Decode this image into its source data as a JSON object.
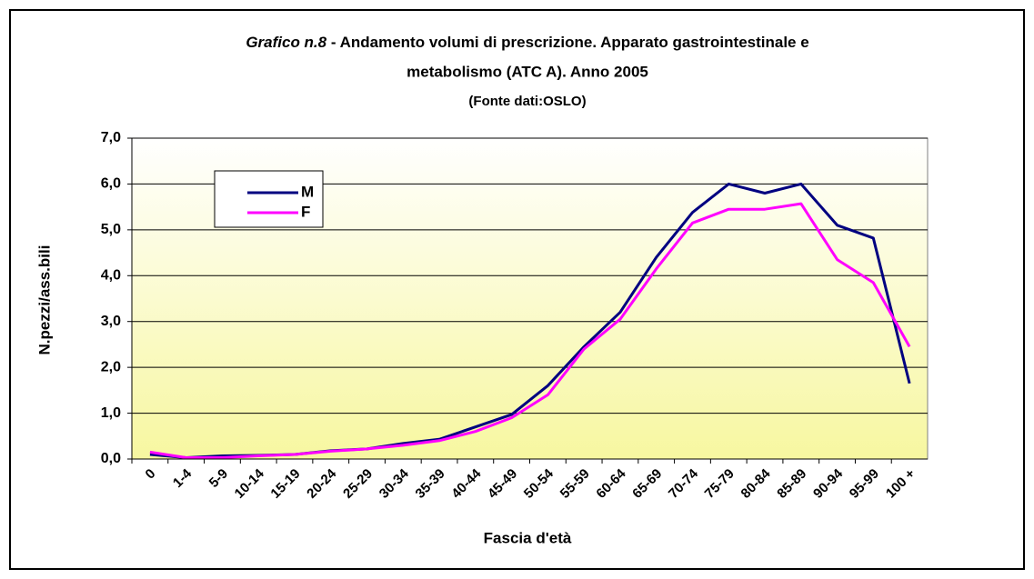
{
  "chart_data": {
    "type": "line",
    "title": [
      "Grafico n.8",
      " - Andamento volumi di prescrizione. Apparato gastrointestinale e",
      "metabolismo (ATC A). Anno 2005"
    ],
    "subtitle": "(Fonte dati:OSLO)",
    "x_label": "Fascia d'età",
    "y_label": "N.pezzi/ass.bili",
    "categories": [
      "0",
      "1-4",
      "5-9",
      "10-14",
      "15-19",
      "20-24",
      "25-29",
      "30-34",
      "35-39",
      "40-44",
      "45-49",
      "50-54",
      "55-59",
      "60-64",
      "65-69",
      "70-74",
      "75-79",
      "80-84",
      "85-89",
      "90-94",
      "95-99",
      "100 +"
    ],
    "series": [
      {
        "name": "M",
        "color": "#000080",
        "values": [
          0.1,
          0.03,
          0.07,
          0.08,
          0.1,
          0.18,
          0.22,
          0.34,
          0.43,
          0.7,
          0.97,
          1.6,
          2.45,
          3.2,
          4.4,
          5.38,
          6.0,
          5.8,
          6.0,
          5.1,
          4.82,
          1.65
        ]
      },
      {
        "name": "F",
        "color": "#ff00ff",
        "values": [
          0.15,
          0.03,
          0.03,
          0.07,
          0.1,
          0.17,
          0.22,
          0.3,
          0.4,
          0.6,
          0.9,
          1.4,
          2.4,
          3.05,
          4.15,
          5.15,
          5.45,
          5.45,
          5.57,
          4.35,
          3.85,
          2.45
        ]
      }
    ],
    "ylim": [
      0,
      7
    ],
    "yticks": [
      {
        "value": 0,
        "label": "0,0"
      },
      {
        "value": 1,
        "label": "1,0"
      },
      {
        "value": 2,
        "label": "2,0"
      },
      {
        "value": 3,
        "label": "3,0"
      },
      {
        "value": 4,
        "label": "4,0"
      },
      {
        "value": 5,
        "label": "5,0"
      },
      {
        "value": 6,
        "label": "6,0"
      },
      {
        "value": 7,
        "label": "7,0"
      }
    ],
    "grid": true
  }
}
